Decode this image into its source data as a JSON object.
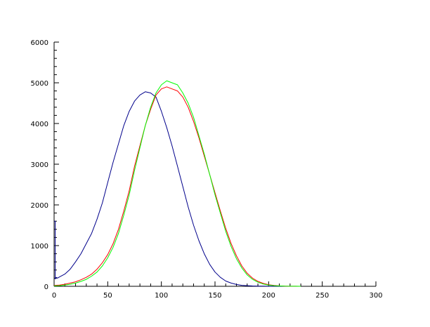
{
  "chart_data": {
    "type": "line",
    "title": "",
    "xlabel": "",
    "ylabel": "",
    "xlim": [
      0,
      300
    ],
    "ylim": [
      0,
      6000
    ],
    "x_ticks": [
      0,
      50,
      100,
      150,
      200,
      250,
      300
    ],
    "y_ticks": [
      0,
      1000,
      2000,
      3000,
      4000,
      5000,
      6000
    ],
    "x_tick_labels": [
      "0",
      "50",
      "100",
      "150",
      "200",
      "250",
      "300"
    ],
    "y_tick_labels": [
      "0",
      "1000",
      "2000",
      "3000",
      "4000",
      "5000",
      "6000"
    ],
    "grid": false,
    "legend": "none",
    "series": [
      {
        "color": "#00008b",
        "x": [
          0,
          1,
          1,
          2,
          3,
          5,
          10,
          15,
          20,
          25,
          30,
          35,
          40,
          45,
          50,
          55,
          60,
          65,
          70,
          75,
          80,
          85,
          90,
          95,
          100,
          105,
          110,
          115,
          120,
          125,
          130,
          135,
          140,
          145,
          150,
          155,
          160,
          165,
          170,
          175,
          180,
          185,
          190,
          195,
          200,
          205,
          210,
          215,
          220,
          225,
          230
        ],
        "y": [
          1600,
          1600,
          180,
          220,
          200,
          230,
          300,
          420,
          600,
          800,
          1050,
          1300,
          1650,
          2050,
          2550,
          3050,
          3500,
          3950,
          4300,
          4550,
          4700,
          4780,
          4750,
          4650,
          4300,
          3900,
          3450,
          2950,
          2450,
          1950,
          1500,
          1120,
          800,
          540,
          350,
          220,
          130,
          80,
          45,
          25,
          15,
          8,
          5,
          3,
          2,
          1,
          1,
          0,
          0,
          0,
          0
        ]
      },
      {
        "color": "#ff0000",
        "x": [
          0,
          5,
          10,
          15,
          20,
          25,
          30,
          35,
          40,
          45,
          50,
          55,
          60,
          65,
          70,
          75,
          80,
          85,
          90,
          95,
          100,
          105,
          110,
          115,
          120,
          125,
          130,
          135,
          140,
          145,
          150,
          155,
          160,
          165,
          170,
          175,
          180,
          185,
          190,
          195,
          200,
          205,
          210,
          215,
          220,
          225,
          230
        ],
        "y": [
          20,
          30,
          50,
          80,
          110,
          160,
          220,
          300,
          420,
          580,
          780,
          1050,
          1400,
          1850,
          2350,
          2950,
          3450,
          3950,
          4350,
          4700,
          4850,
          4900,
          4850,
          4800,
          4650,
          4400,
          4050,
          3650,
          3200,
          2750,
          2300,
          1850,
          1420,
          1050,
          750,
          500,
          320,
          200,
          120,
          70,
          40,
          20,
          10,
          5,
          2,
          1,
          0
        ]
      },
      {
        "color": "#00ff00",
        "x": [
          0,
          5,
          10,
          15,
          20,
          25,
          30,
          35,
          40,
          45,
          50,
          55,
          60,
          65,
          70,
          75,
          80,
          85,
          90,
          95,
          100,
          105,
          110,
          115,
          120,
          125,
          130,
          135,
          140,
          145,
          150,
          155,
          160,
          165,
          170,
          175,
          180,
          185,
          190,
          195,
          200,
          205,
          210,
          215,
          220,
          225,
          230
        ],
        "y": [
          10,
          15,
          30,
          50,
          80,
          120,
          170,
          250,
          350,
          500,
          700,
          960,
          1300,
          1750,
          2250,
          2850,
          3400,
          3950,
          4400,
          4750,
          4950,
          5050,
          5000,
          4950,
          4750,
          4500,
          4150,
          3700,
          3250,
          2750,
          2250,
          1800,
          1350,
          980,
          680,
          450,
          280,
          170,
          100,
          55,
          30,
          15,
          8,
          4,
          2,
          1,
          0
        ]
      }
    ]
  }
}
